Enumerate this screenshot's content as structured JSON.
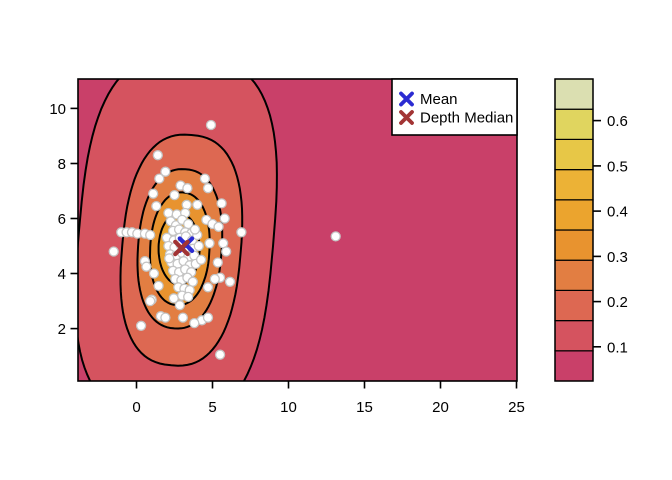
{
  "figure": {
    "background": "#ffffff",
    "plot_background_note": "filled contour density plot with scatter points"
  },
  "chart_data": {
    "type": "scatter",
    "subtype": "filled-contour-density-with-scatter",
    "title": "",
    "xlabel": "",
    "ylabel": "",
    "x_axis": {
      "ticks": [
        0,
        5,
        10,
        15,
        20,
        25
      ],
      "range": [
        -3.85,
        25.03
      ]
    },
    "y_axis": {
      "ticks": [
        2,
        4,
        6,
        8,
        10
      ],
      "range": [
        0.095,
        11.07
      ]
    },
    "contour_levels": [
      {
        "value_band": "0.09-0.16",
        "fill": "#D5535F",
        "cx": 2.6,
        "cy": 5.3,
        "rx": 6.4,
        "ry": 6.65,
        "n": 2.9,
        "rot": 5
      },
      {
        "value_band": "0.16-0.22",
        "fill": "#DD6852",
        "cx": 2.95,
        "cy": 4.85,
        "rx": 3.9,
        "ry": 4.2,
        "n": 2.5,
        "rot": 5
      },
      {
        "value_band": "0.22-0.29",
        "fill": "#E27E42",
        "cx": 2.85,
        "cy": 4.9,
        "rx": 2.75,
        "ry": 2.9,
        "n": 2.3,
        "rot": 4
      },
      {
        "value_band": "0.29-0.36",
        "fill": "#E8932F",
        "cx": 2.85,
        "cy": 4.9,
        "rx": 1.95,
        "ry": 2.05,
        "n": 2.2,
        "rot": 3
      },
      {
        "value_band": "0.36-0.42",
        "fill": "#EBA42E",
        "cx": 2.8,
        "cy": 4.9,
        "rx": 1.35,
        "ry": 1.3,
        "n": 2.0,
        "rot": 0
      },
      {
        "value_band": "peak",
        "fill": "#E0D55F",
        "cx": 2.95,
        "cy": 5.28,
        "rx": 0.3,
        "ry": 0.33,
        "n": 2.0,
        "rot": 0
      }
    ],
    "points_style": {
      "fill": "#ffffff",
      "stroke": "#C5C5C5",
      "radius_px": 4.5
    },
    "points": [
      [
        13.1,
        5.35
      ],
      [
        4.9,
        9.4
      ],
      [
        5.5,
        1.05
      ],
      [
        -1.5,
        4.8
      ],
      [
        -1.0,
        5.5
      ],
      [
        0.3,
        2.1
      ],
      [
        -0.65,
        5.5
      ],
      [
        -0.3,
        5.5
      ],
      [
        0.05,
        5.45
      ],
      [
        0.55,
        5.45
      ],
      [
        0.9,
        5.4
      ],
      [
        1.4,
        8.3
      ],
      [
        1.9,
        7.7
      ],
      [
        1.5,
        7.45
      ],
      [
        1.1,
        6.9
      ],
      [
        1.3,
        6.45
      ],
      [
        2.5,
        6.85
      ],
      [
        2.9,
        7.2
      ],
      [
        3.35,
        7.1
      ],
      [
        3.3,
        6.5
      ],
      [
        4.0,
        6.5
      ],
      [
        2.1,
        6.2
      ],
      [
        2.65,
        6.15
      ],
      [
        3.2,
        6.2
      ],
      [
        4.5,
        7.45
      ],
      [
        4.7,
        7.1
      ],
      [
        5.6,
        6.55
      ],
      [
        5.8,
        6.0
      ],
      [
        4.6,
        5.95
      ],
      [
        5.0,
        5.8
      ],
      [
        5.4,
        5.7
      ],
      [
        6.9,
        5.5
      ],
      [
        5.7,
        5.1
      ],
      [
        5.9,
        4.8
      ],
      [
        4.8,
        5.1
      ],
      [
        5.35,
        4.4
      ],
      [
        6.15,
        3.7
      ],
      [
        5.5,
        3.85
      ],
      [
        5.15,
        3.8
      ],
      [
        4.7,
        3.5
      ],
      [
        4.3,
        2.3
      ],
      [
        1.0,
        3.05
      ],
      [
        1.6,
        2.45
      ],
      [
        1.9,
        2.4
      ],
      [
        2.85,
        2.85
      ],
      [
        3.05,
        2.4
      ],
      [
        3.8,
        2.2
      ],
      [
        4.7,
        2.4
      ],
      [
        2.45,
        3.1
      ],
      [
        0.55,
        4.45
      ],
      [
        0.65,
        4.25
      ],
      [
        0.9,
        3.0
      ],
      [
        1.15,
        4.0
      ],
      [
        1.45,
        3.55
      ],
      [
        2.25,
        5.9
      ],
      [
        2.6,
        5.75
      ],
      [
        3.0,
        5.95
      ],
      [
        3.4,
        5.8
      ],
      [
        2.4,
        5.55
      ],
      [
        2.8,
        5.6
      ],
      [
        3.2,
        5.5
      ],
      [
        3.6,
        5.45
      ],
      [
        2.0,
        5.3
      ],
      [
        2.45,
        5.2
      ],
      [
        2.85,
        5.3
      ],
      [
        3.25,
        5.35
      ],
      [
        3.65,
        5.2
      ],
      [
        4.0,
        5.4
      ],
      [
        2.1,
        5.0
      ],
      [
        2.5,
        4.95
      ],
      [
        2.9,
        5.05
      ],
      [
        3.3,
        4.95
      ],
      [
        3.7,
        4.9
      ],
      [
        4.1,
        5.0
      ],
      [
        2.2,
        4.7
      ],
      [
        2.6,
        4.65
      ],
      [
        3.0,
        4.75
      ],
      [
        3.4,
        4.6
      ],
      [
        3.8,
        4.65
      ],
      [
        2.3,
        4.4
      ],
      [
        2.7,
        4.35
      ],
      [
        3.1,
        4.45
      ],
      [
        3.5,
        4.3
      ],
      [
        3.9,
        4.35
      ],
      [
        2.4,
        4.1
      ],
      [
        2.8,
        4.05
      ],
      [
        3.2,
        4.15
      ],
      [
        3.6,
        4.05
      ],
      [
        2.55,
        3.8
      ],
      [
        2.95,
        3.75
      ],
      [
        3.35,
        3.85
      ],
      [
        3.7,
        3.7
      ],
      [
        2.75,
        3.5
      ],
      [
        3.15,
        3.45
      ],
      [
        3.5,
        3.4
      ],
      [
        3.0,
        3.2
      ],
      [
        3.4,
        3.15
      ],
      [
        2.15,
        4.55
      ],
      [
        3.85,
        5.6
      ],
      [
        4.25,
        4.5
      ]
    ],
    "markers": {
      "mean": {
        "x": 3.25,
        "y": 5.05,
        "color": "#2B2BD2",
        "symbol": "x"
      },
      "depth_median": {
        "x": 2.95,
        "y": 4.93,
        "color": "#A23434",
        "symbol": "x"
      }
    },
    "legend": {
      "position": "top-right",
      "items": [
        {
          "label": "Mean",
          "symbol": "x",
          "color": "#2B2BD2"
        },
        {
          "label": "Depth Median",
          "symbol": "x",
          "color": "#A23434"
        }
      ]
    },
    "colorbar": {
      "orientation": "vertical",
      "colors_bottom_to_top": [
        "#C94069",
        "#D5535F",
        "#DD6852",
        "#E27E42",
        "#E8932F",
        "#EBA42E",
        "#ECB236",
        "#E7C747",
        "#E0D55F",
        "#DBDFB1"
      ],
      "vmin": 0.0245,
      "vmax": 0.692,
      "tick_values": [
        0.1,
        0.2,
        0.3,
        0.4,
        0.5,
        0.6
      ],
      "tick_labels": [
        "0.1",
        "0.2",
        "0.3",
        "0.4",
        "0.5",
        "0.6"
      ]
    }
  }
}
